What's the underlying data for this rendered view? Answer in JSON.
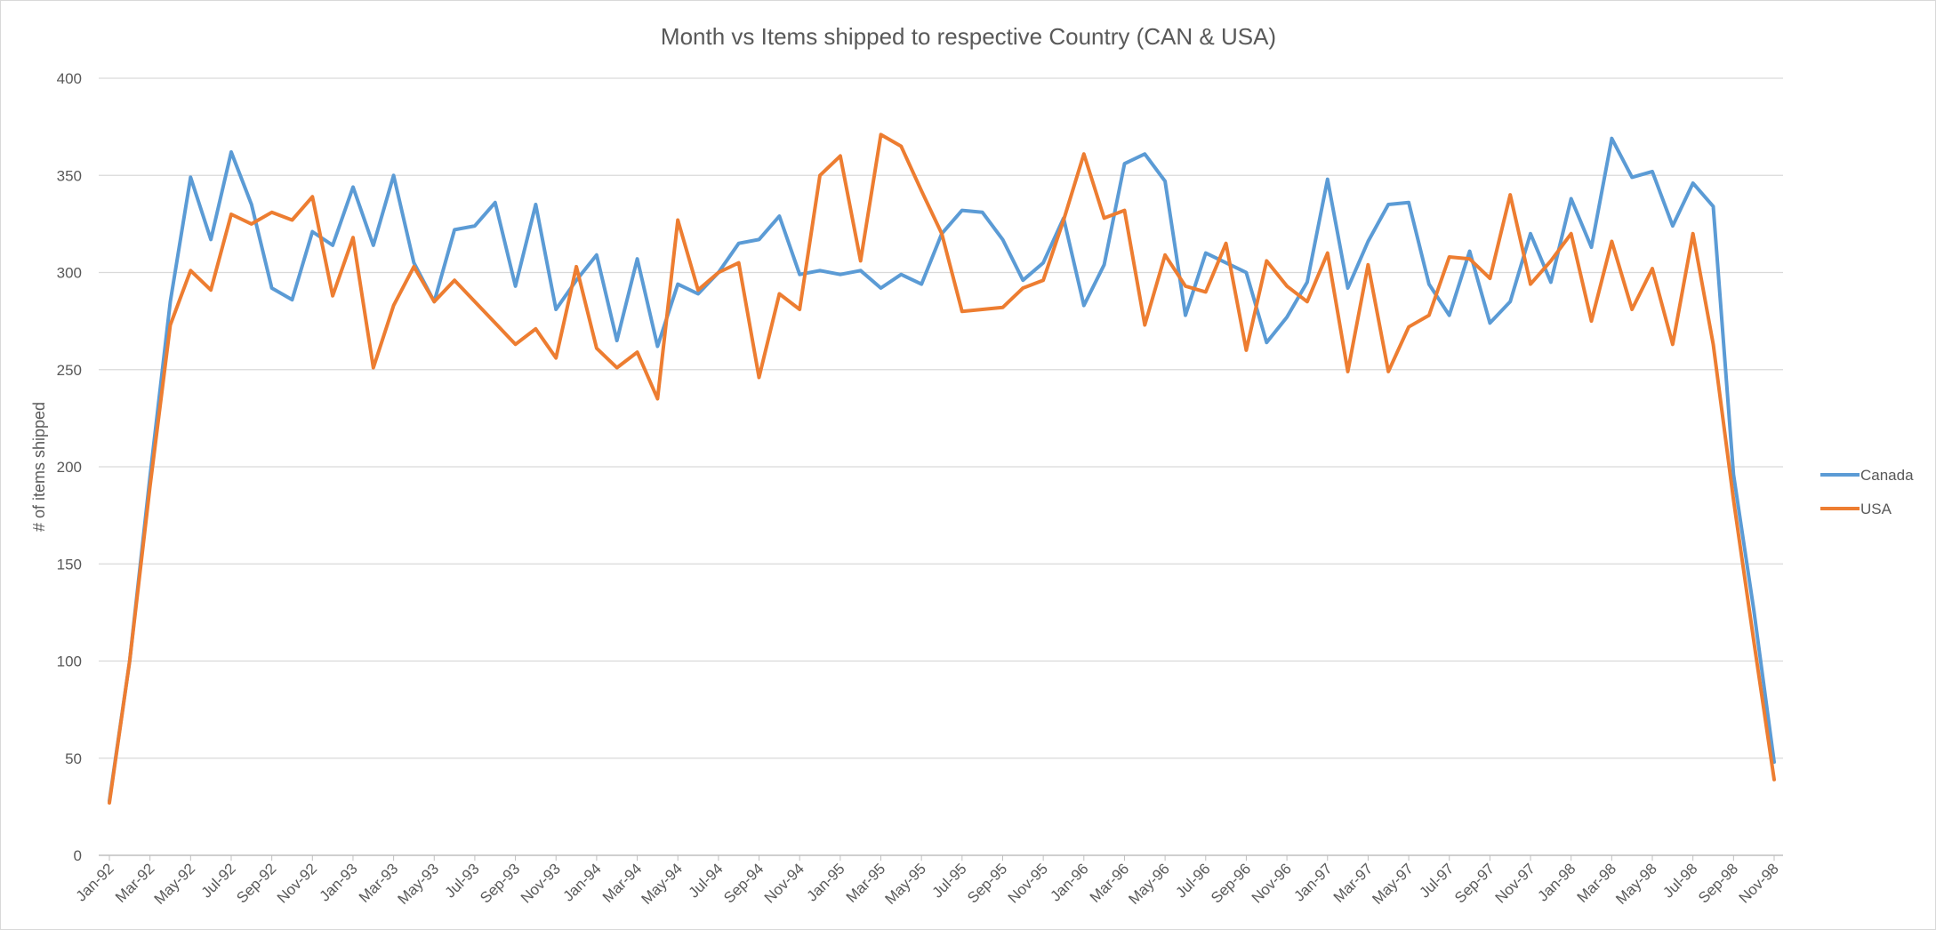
{
  "chart_data": {
    "type": "line",
    "title": "Month vs Items shipped to respective Country (CAN & USA)",
    "xlabel": "",
    "ylabel": "# of items shipped",
    "ylim": [
      0,
      400
    ],
    "yticks": [
      0,
      50,
      100,
      150,
      200,
      250,
      300,
      350,
      400
    ],
    "grid": true,
    "legend_position": "right",
    "x_tick_labels": [
      "Jan-92",
      "Mar-92",
      "May-92",
      "Jul-92",
      "Sep-92",
      "Nov-92",
      "Jan-93",
      "Mar-93",
      "May-93",
      "Jul-93",
      "Sep-93",
      "Nov-93",
      "Jan-94",
      "Mar-94",
      "May-94",
      "Jul-94",
      "Sep-94",
      "Nov-94",
      "Jan-95",
      "Mar-95",
      "May-95",
      "Jul-95",
      "Sep-95",
      "Nov-95",
      "Jan-96",
      "Mar-96",
      "May-96",
      "Jul-96",
      "Sep-96",
      "Nov-96",
      "Jan-97",
      "Mar-97",
      "May-97",
      "Jul-97",
      "Sep-97",
      "Nov-97",
      "Jan-98",
      "Mar-98",
      "May-98",
      "Jul-98",
      "Sep-98",
      "Nov-98"
    ],
    "categories": [
      "Jan-92",
      "Feb-92",
      "Mar-92",
      "Apr-92",
      "May-92",
      "Jun-92",
      "Jul-92",
      "Aug-92",
      "Sep-92",
      "Oct-92",
      "Nov-92",
      "Dec-92",
      "Jan-93",
      "Feb-93",
      "Mar-93",
      "Apr-93",
      "May-93",
      "Jun-93",
      "Jul-93",
      "Aug-93",
      "Sep-93",
      "Oct-93",
      "Nov-93",
      "Dec-93",
      "Jan-94",
      "Feb-94",
      "Mar-94",
      "Apr-94",
      "May-94",
      "Jun-94",
      "Jul-94",
      "Aug-94",
      "Sep-94",
      "Oct-94",
      "Nov-94",
      "Dec-94",
      "Jan-95",
      "Feb-95",
      "Mar-95",
      "Apr-95",
      "May-95",
      "Jun-95",
      "Jul-95",
      "Aug-95",
      "Sep-95",
      "Oct-95",
      "Nov-95",
      "Dec-95",
      "Jan-96",
      "Feb-96",
      "Mar-96",
      "Apr-96",
      "May-96",
      "Jun-96",
      "Jul-96",
      "Aug-96",
      "Sep-96",
      "Oct-96",
      "Nov-96",
      "Dec-96",
      "Jan-97",
      "Feb-97",
      "Mar-97",
      "Apr-97",
      "May-97",
      "Jun-97",
      "Jul-97",
      "Aug-97",
      "Sep-97",
      "Oct-97",
      "Nov-97",
      "Dec-97",
      "Jan-98",
      "Feb-98",
      "Mar-98",
      "Apr-98",
      "May-98",
      "Jun-98",
      "Jul-98",
      "Aug-98",
      "Sep-98",
      "Oct-98",
      "Nov-98"
    ],
    "series": [
      {
        "name": "Canada",
        "color": "#5b9bd5",
        "values": [
          28,
          100,
          195,
          285,
          349,
          317,
          362,
          335,
          292,
          286,
          321,
          314,
          344,
          314,
          350,
          305,
          285,
          322,
          324,
          336,
          293,
          335,
          281,
          296,
          309,
          265,
          307,
          262,
          294,
          289,
          300,
          315,
          317,
          329,
          299,
          301,
          299,
          301,
          292,
          299,
          294,
          320,
          332,
          331,
          317,
          296,
          305,
          328,
          283,
          304,
          356,
          361,
          347,
          278,
          310,
          305,
          300,
          264,
          277,
          295,
          348,
          292,
          316,
          335,
          336,
          294,
          278,
          311,
          274,
          285,
          320,
          295,
          338,
          313,
          369,
          349,
          352,
          324,
          346,
          334,
          196,
          126,
          48
        ]
      },
      {
        "name": "USA",
        "color": "#ed7d31",
        "values": [
          27,
          100,
          190,
          273,
          301,
          291,
          330,
          325,
          331,
          327,
          339,
          288,
          318,
          251,
          283,
          303,
          285,
          296,
          285,
          274,
          263,
          271,
          256,
          303,
          261,
          251,
          259,
          235,
          327,
          291,
          300,
          305,
          246,
          289,
          281,
          350,
          360,
          306,
          371,
          365,
          342,
          320,
          280,
          281,
          282,
          292,
          296,
          327,
          361,
          328,
          332,
          273,
          309,
          293,
          290,
          315,
          260,
          306,
          293,
          285,
          310,
          249,
          304,
          249,
          272,
          278,
          308,
          307,
          297,
          340,
          294,
          306,
          320,
          275,
          316,
          281,
          302,
          263,
          320,
          263,
          183,
          110,
          39
        ]
      }
    ]
  }
}
